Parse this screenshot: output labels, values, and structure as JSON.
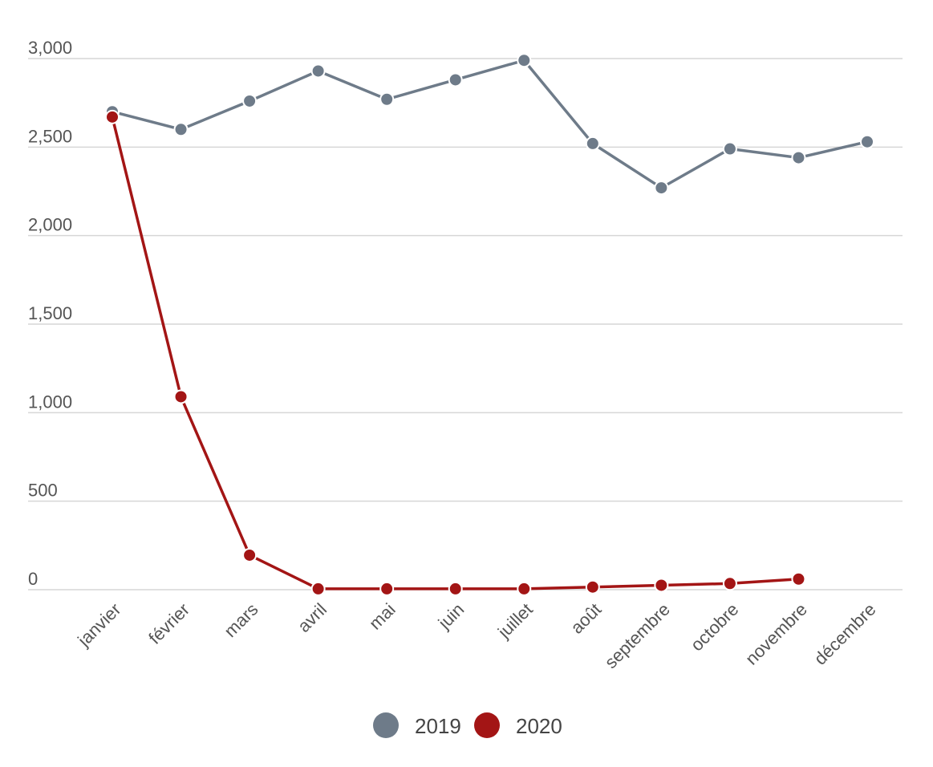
{
  "chart_data": {
    "type": "line",
    "title": "",
    "xlabel": "",
    "ylabel": "",
    "categories": [
      "janvier",
      "février",
      "mars",
      "avril",
      "mai",
      "juin",
      "juillet",
      "août",
      "septembre",
      "octobre",
      "novembre",
      "décembre"
    ],
    "ylim": [
      0,
      3000
    ],
    "y_ticks": [
      0,
      500,
      1000,
      1500,
      2000,
      2500,
      3000
    ],
    "y_tick_labels": [
      "0",
      "500",
      "1,000",
      "1,500",
      "2,000",
      "2,500",
      "3,000"
    ],
    "grid": true,
    "legend_position": "bottom-center",
    "series": [
      {
        "name": "2019",
        "color": "#6e7b89",
        "values": [
          2700,
          2600,
          2760,
          2930,
          2770,
          2880,
          2990,
          2520,
          2270,
          2490,
          2440,
          2530
        ]
      },
      {
        "name": "2020",
        "color": "#a31515",
        "values": [
          2670,
          1090,
          195,
          5,
          5,
          5,
          5,
          15,
          25,
          35,
          60,
          null
        ]
      }
    ]
  }
}
